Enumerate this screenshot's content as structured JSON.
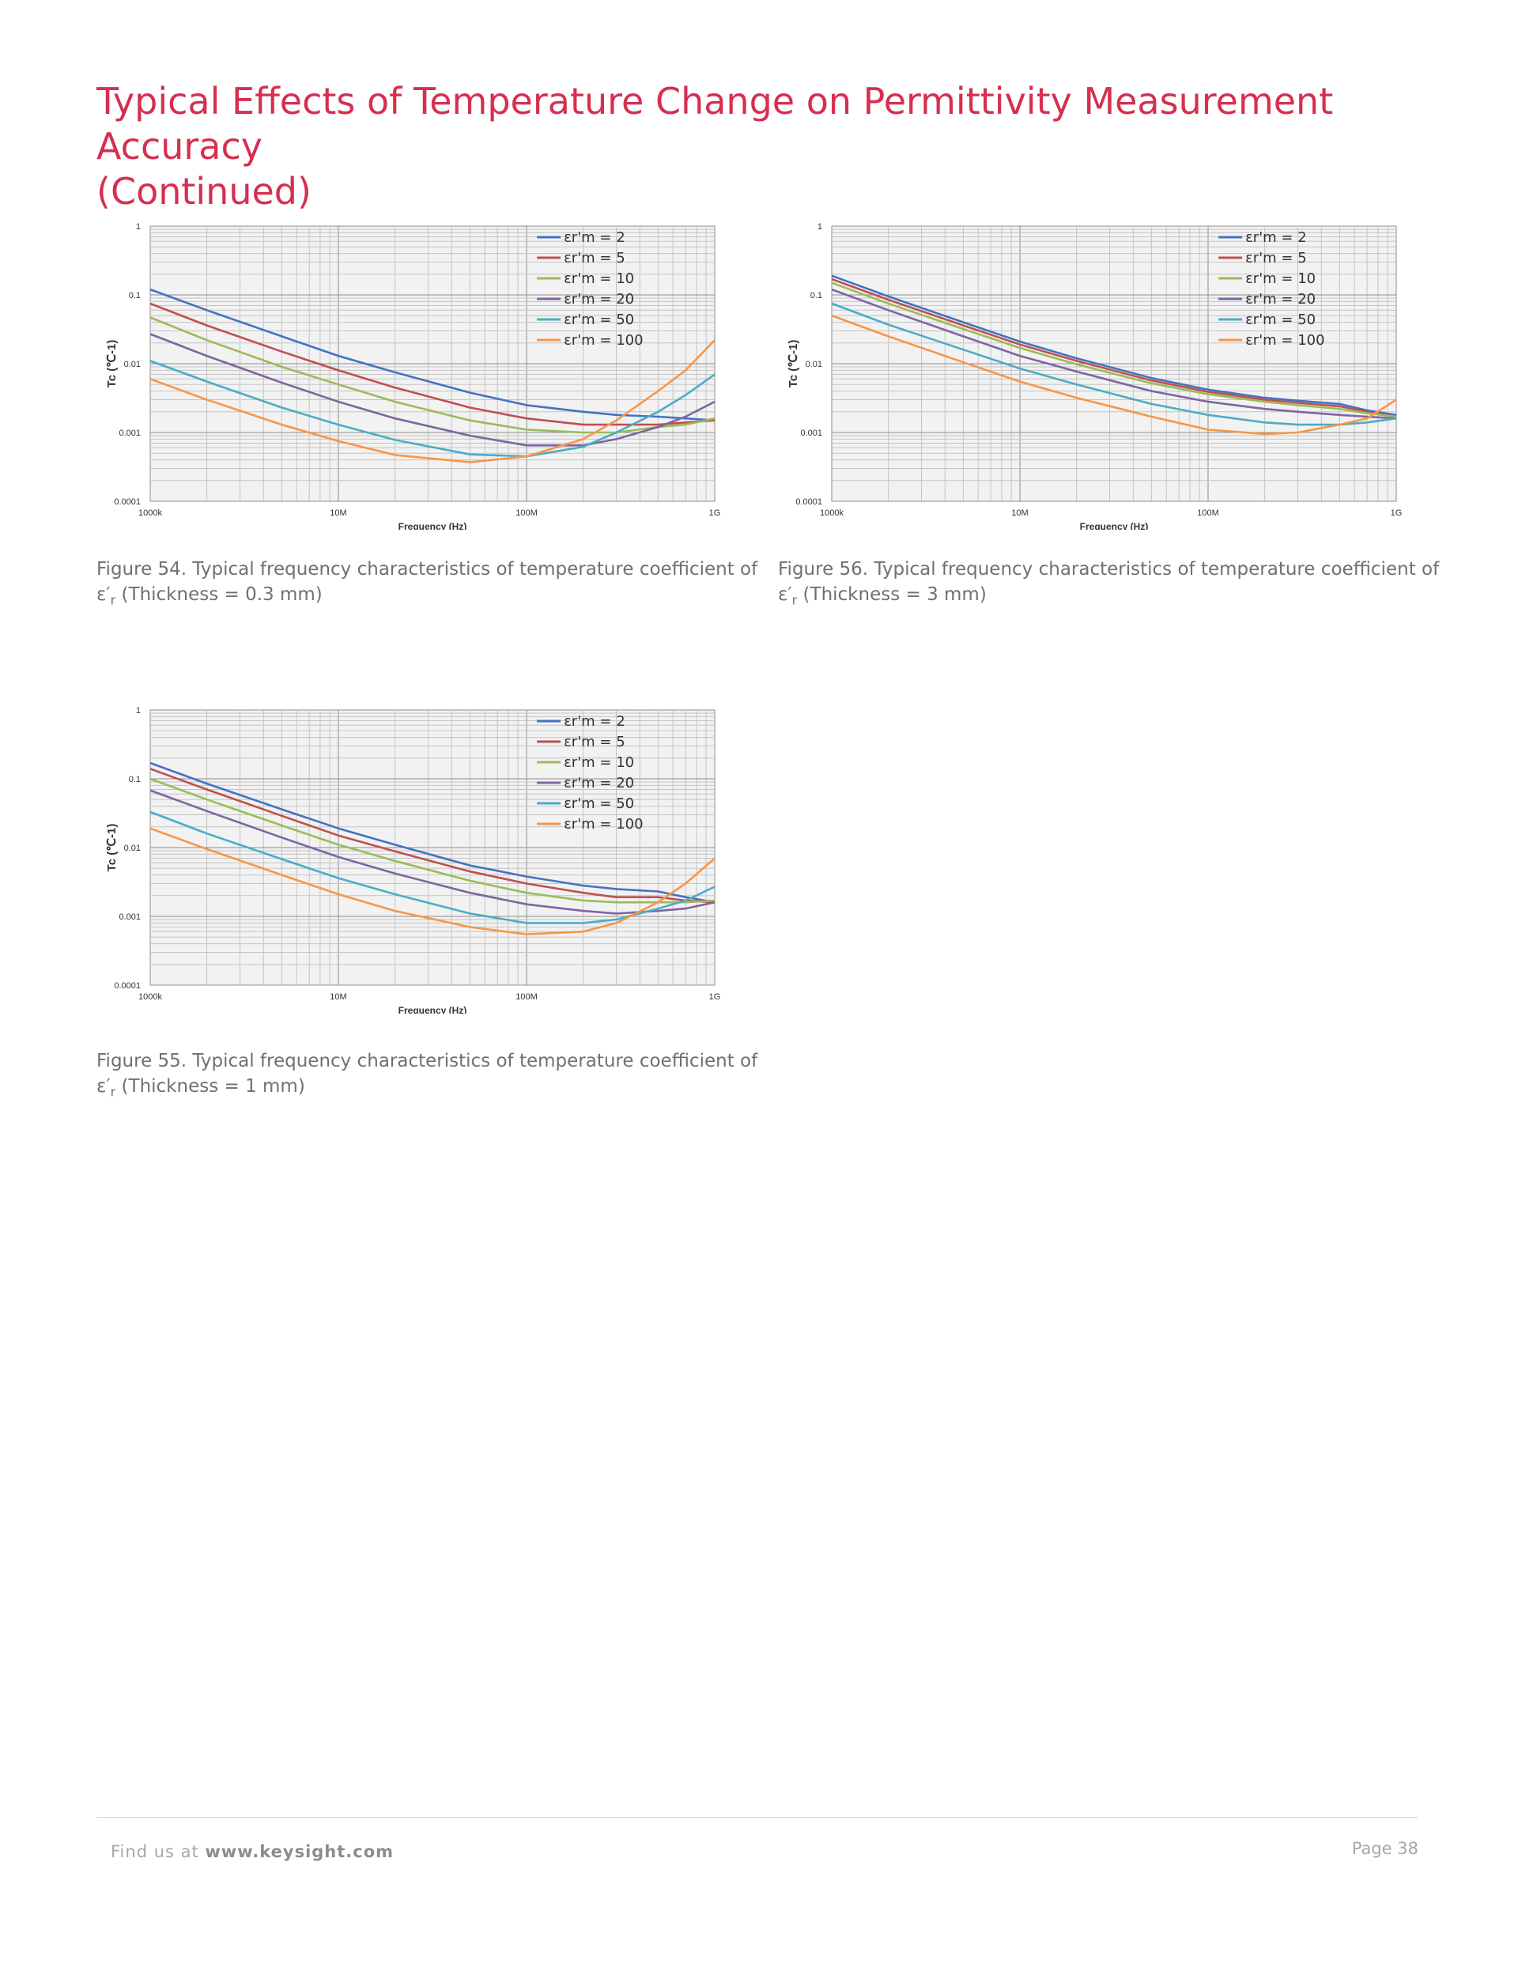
{
  "page": {
    "title_line1": "Typical Effects of Temperature Change on Permittivity Measurement Accuracy",
    "title_line2": "(Continued)",
    "footer_left_prefix": "Find us at ",
    "footer_left_link": "www.keysight.com",
    "footer_right": "Page 38"
  },
  "colors": {
    "title": "#d62f4f",
    "series": [
      "#4472c4",
      "#c0504d",
      "#9bbb59",
      "#8064a2",
      "#4bacc6",
      "#f79646"
    ]
  },
  "chart_data": [
    {
      "id": "fig54",
      "type": "line",
      "caption_line1": "Figure 54. Typical frequency characteristics of temperature coefficient of",
      "caption_eps": "ε′",
      "caption_sub": "r",
      "caption_rest": " (Thickness = 0.3 mm)",
      "xlabel": "Frequency (Hz)",
      "ylabel": "Tc (℃-1)",
      "x_scale": "log",
      "y_scale": "log",
      "xlim": [
        1000000,
        1000000000
      ],
      "ylim": [
        0.0001,
        1
      ],
      "x_ticks": [
        1000000,
        10000000,
        100000000,
        1000000000
      ],
      "x_tick_labels": [
        "1000k",
        "10M",
        "100M",
        "1G"
      ],
      "y_ticks": [
        1,
        0.1,
        0.01,
        0.001,
        0.0001
      ],
      "y_tick_labels": [
        "1",
        "0.1",
        "0.01",
        "0.001",
        "0.0001"
      ],
      "grid": true,
      "legend": "top-right",
      "x": [
        1000000,
        2000000,
        5000000,
        10000000,
        20000000,
        50000000,
        100000000,
        200000000,
        300000000,
        500000000,
        700000000,
        1000000000
      ],
      "series": [
        {
          "name": "εr'm = 2",
          "values": [
            0.12,
            0.06,
            0.025,
            0.013,
            0.0075,
            0.0038,
            0.0025,
            0.002,
            0.0018,
            0.0017,
            0.0016,
            0.0015
          ]
        },
        {
          "name": "εr'm = 5",
          "values": [
            0.075,
            0.036,
            0.015,
            0.008,
            0.0045,
            0.0023,
            0.0016,
            0.0013,
            0.0013,
            0.0013,
            0.0014,
            0.0015
          ]
        },
        {
          "name": "εr'm = 10",
          "values": [
            0.047,
            0.022,
            0.009,
            0.005,
            0.0028,
            0.0015,
            0.0011,
            0.001,
            0.001,
            0.0012,
            0.0013,
            0.0016
          ]
        },
        {
          "name": "εr'm = 20",
          "values": [
            0.027,
            0.013,
            0.0053,
            0.0028,
            0.0016,
            0.0009,
            0.00065,
            0.00065,
            0.0008,
            0.0012,
            0.0017,
            0.0028
          ]
        },
        {
          "name": "εr'm = 50",
          "values": [
            0.011,
            0.0055,
            0.0023,
            0.0013,
            0.00078,
            0.00048,
            0.00045,
            0.00062,
            0.001,
            0.002,
            0.0035,
            0.007
          ]
        },
        {
          "name": "εr'm = 100",
          "values": [
            0.006,
            0.003,
            0.0013,
            0.00075,
            0.00047,
            0.00037,
            0.00045,
            0.0008,
            0.0015,
            0.004,
            0.008,
            0.022
          ]
        }
      ]
    },
    {
      "id": "fig56",
      "type": "line",
      "caption_line1": "Figure 56. Typical frequency characteristics of temperature coefficient of",
      "caption_eps": "ε′",
      "caption_sub": "r",
      "caption_rest": " (Thickness = 3 mm)",
      "xlabel": "Frequency (Hz)",
      "ylabel": "Tc (℃-1)",
      "x_scale": "log",
      "y_scale": "log",
      "xlim": [
        1000000,
        1000000000
      ],
      "ylim": [
        0.0001,
        1
      ],
      "x_ticks": [
        1000000,
        10000000,
        100000000,
        1000000000
      ],
      "x_tick_labels": [
        "1000k",
        "10M",
        "100M",
        "1G"
      ],
      "y_ticks": [
        1,
        0.1,
        0.01,
        0.001,
        0.0001
      ],
      "y_tick_labels": [
        "1",
        "0.1",
        "0.01",
        "0.001",
        "0.0001"
      ],
      "grid": true,
      "legend": "top-right",
      "x": [
        1000000,
        2000000,
        5000000,
        10000000,
        20000000,
        50000000,
        100000000,
        200000000,
        300000000,
        500000000,
        700000000,
        1000000000
      ],
      "series": [
        {
          "name": "εr'm = 2",
          "values": [
            0.19,
            0.095,
            0.04,
            0.021,
            0.012,
            0.0062,
            0.0042,
            0.0032,
            0.0029,
            0.0026,
            0.0021,
            0.0018
          ]
        },
        {
          "name": "εr'm = 5",
          "values": [
            0.17,
            0.085,
            0.036,
            0.019,
            0.011,
            0.0057,
            0.0039,
            0.003,
            0.0027,
            0.0024,
            0.002,
            0.0017
          ]
        },
        {
          "name": "εr'm = 10",
          "values": [
            0.15,
            0.075,
            0.032,
            0.017,
            0.0098,
            0.0052,
            0.0036,
            0.0028,
            0.0025,
            0.0022,
            0.0019,
            0.0017
          ]
        },
        {
          "name": "εr'm = 20",
          "values": [
            0.12,
            0.06,
            0.025,
            0.013,
            0.0077,
            0.004,
            0.0028,
            0.0022,
            0.002,
            0.0018,
            0.0017,
            0.0016
          ]
        },
        {
          "name": "εr'm = 50",
          "values": [
            0.075,
            0.037,
            0.016,
            0.0085,
            0.005,
            0.0026,
            0.0018,
            0.0014,
            0.0013,
            0.0013,
            0.0014,
            0.0016
          ]
        },
        {
          "name": "εr'm = 100",
          "values": [
            0.05,
            0.025,
            0.0105,
            0.0055,
            0.0032,
            0.0017,
            0.0011,
            0.00095,
            0.001,
            0.0013,
            0.0016,
            0.003
          ]
        }
      ]
    },
    {
      "id": "fig55",
      "type": "line",
      "caption_line1": "Figure 55. Typical frequency characteristics of temperature coefficient of",
      "caption_eps": "ε′",
      "caption_sub": "r",
      "caption_rest": " (Thickness = 1 mm)",
      "xlabel": "Frequency (Hz)",
      "ylabel": "Tc (℃-1)",
      "x_scale": "log",
      "y_scale": "log",
      "xlim": [
        1000000,
        1000000000
      ],
      "ylim": [
        0.0001,
        1
      ],
      "x_ticks": [
        1000000,
        10000000,
        100000000,
        1000000000
      ],
      "x_tick_labels": [
        "1000k",
        "10M",
        "100M",
        "1G"
      ],
      "y_ticks": [
        1,
        0.1,
        0.01,
        0.001,
        0.0001
      ],
      "y_tick_labels": [
        "1",
        "0.1",
        "0.01",
        "0.001",
        "0.0001"
      ],
      "grid": true,
      "legend": "top-right",
      "x": [
        1000000,
        2000000,
        5000000,
        10000000,
        20000000,
        50000000,
        100000000,
        200000000,
        300000000,
        500000000,
        700000000,
        1000000000
      ],
      "series": [
        {
          "name": "εr'm = 2",
          "values": [
            0.17,
            0.085,
            0.036,
            0.019,
            0.011,
            0.0055,
            0.0038,
            0.0028,
            0.0025,
            0.0023,
            0.0019,
            0.0016
          ]
        },
        {
          "name": "εr'm = 5",
          "values": [
            0.14,
            0.07,
            0.029,
            0.015,
            0.0088,
            0.0045,
            0.003,
            0.0022,
            0.0019,
            0.0019,
            0.0017,
            0.0016
          ]
        },
        {
          "name": "εr'm = 10",
          "values": [
            0.1,
            0.05,
            0.021,
            0.011,
            0.0064,
            0.0033,
            0.0022,
            0.0017,
            0.0016,
            0.0016,
            0.0016,
            0.0017
          ]
        },
        {
          "name": "εr'm = 20",
          "values": [
            0.068,
            0.034,
            0.014,
            0.0073,
            0.0042,
            0.0022,
            0.0015,
            0.0012,
            0.0011,
            0.0012,
            0.0013,
            0.0016
          ]
        },
        {
          "name": "εr'm = 50",
          "values": [
            0.033,
            0.016,
            0.0068,
            0.0036,
            0.0021,
            0.0011,
            0.0008,
            0.0008,
            0.0009,
            0.0013,
            0.0017,
            0.0027
          ]
        },
        {
          "name": "εr'm = 100",
          "values": [
            0.019,
            0.0095,
            0.004,
            0.0021,
            0.0012,
            0.0007,
            0.00055,
            0.0006,
            0.0008,
            0.0016,
            0.003,
            0.007
          ]
        }
      ]
    }
  ]
}
